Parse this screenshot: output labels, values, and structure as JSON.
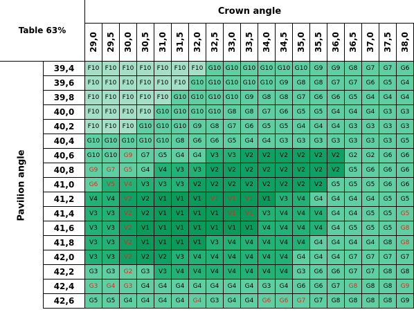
{
  "table_title": "Table 63%",
  "column_axis_label": "Crown angle",
  "row_axis_label": "Pavilion angle",
  "crown_angles": [
    "29,0",
    "29,5",
    "30,0",
    "30,5",
    "31,0",
    "31,5",
    "32,0",
    "32,5",
    "33,0",
    "33,5",
    "34,0",
    "34,5",
    "35,0",
    "35,5",
    "36,0",
    "36,5",
    "37,0",
    "37,5",
    "38,0"
  ],
  "pavilion_angles": [
    "39,4",
    "39,6",
    "39,8",
    "40,0",
    "40,2",
    "40,4",
    "40,6",
    "40,8",
    "41,0",
    "41,2",
    "41,4",
    "41,6",
    "41,8",
    "42,0",
    "42,2",
    "42,4",
    "42,6"
  ],
  "grades": [
    [
      "F10",
      "F10",
      "F10",
      "F10",
      "F10",
      "F10",
      "F10",
      "G10",
      "G10",
      "G10",
      "G10",
      "G10",
      "G10",
      "G9",
      "G9",
      "G8",
      "G7",
      "G7",
      "G6"
    ],
    [
      "F10",
      "F10",
      "F10",
      "F10",
      "F10",
      "F10",
      "G10",
      "G10",
      "G10",
      "G10",
      "G10",
      "G9",
      "G8",
      "G8",
      "G7",
      "G7",
      "G6",
      "G5",
      "G4"
    ],
    [
      "F10",
      "F10",
      "F10",
      "F10",
      "F10",
      "G10",
      "G10",
      "G10",
      "G10",
      "G9",
      "G8",
      "G8",
      "G7",
      "G6",
      "G6",
      "G5",
      "G4",
      "G4",
      "G4"
    ],
    [
      "F10",
      "F10",
      "F10",
      "F10",
      "G10",
      "G10",
      "G10",
      "G10",
      "G8",
      "G8",
      "G7",
      "G6",
      "G5",
      "G5",
      "G4",
      "G4",
      "G4",
      "G3",
      "G3"
    ],
    [
      "F10",
      "F10",
      "F10",
      "G10",
      "G10",
      "G10",
      "G9",
      "G8",
      "G7",
      "G6",
      "G5",
      "G5",
      "G4",
      "G4",
      "G4",
      "G3",
      "G3",
      "G3",
      "G3"
    ],
    [
      "G10",
      "G10",
      "G10",
      "G10",
      "G10",
      "G8",
      "G6",
      "G6",
      "G5",
      "G4",
      "G4",
      "G3",
      "G3",
      "G3",
      "G3",
      "G3",
      "G3",
      "G3",
      "G5"
    ],
    [
      "G10",
      "G10",
      "G9",
      "G7",
      "G5",
      "G4",
      "G4",
      "V3",
      "V3",
      "V2",
      "V2",
      "V2",
      "V2",
      "V2",
      "V2",
      "G2",
      "G2",
      "G6",
      "G6"
    ],
    [
      "G9",
      "G7",
      "G5",
      "G4",
      "V4",
      "V3",
      "V3",
      "V2",
      "V2",
      "V2",
      "V2",
      "V2",
      "V2",
      "V2",
      "V2",
      "G5",
      "G6",
      "G6",
      "G6"
    ],
    [
      "G6",
      "V5",
      "V4",
      "V3",
      "V3",
      "V3",
      "V2",
      "V2",
      "V2",
      "V2",
      "V2",
      "V2",
      "V2",
      "V2",
      "G5",
      "G5",
      "G5",
      "G6",
      "G6"
    ],
    [
      "V4",
      "V4",
      "V2",
      "V2",
      "V1",
      "V1",
      "V1",
      "V1",
      "V1",
      "V1",
      "V1",
      "V3",
      "V4",
      "G4",
      "G4",
      "G4",
      "G4",
      "G5",
      "G5"
    ],
    [
      "V3",
      "V3",
      "V2",
      "V2",
      "V1",
      "V1",
      "V1",
      "V1",
      "V1",
      "V1",
      "V3",
      "V4",
      "V4",
      "V4",
      "G4",
      "G4",
      "G5",
      "G5",
      "G5"
    ],
    [
      "V3",
      "V3",
      "V2",
      "V1",
      "V1",
      "V1",
      "V1",
      "V1",
      "V1",
      "V1",
      "V4",
      "V4",
      "V4",
      "V4",
      "G4",
      "G5",
      "G5",
      "G5",
      "G8"
    ],
    [
      "V3",
      "V3",
      "V2",
      "V1",
      "V1",
      "V1",
      "V1",
      "V3",
      "V4",
      "V4",
      "V4",
      "V4",
      "V4",
      "G4",
      "G4",
      "G4",
      "G4",
      "G8",
      "G8"
    ],
    [
      "V3",
      "V3",
      "V2",
      "V2",
      "V2",
      "V3",
      "V4",
      "V4",
      "V4",
      "V4",
      "V4",
      "V4",
      "G4",
      "G4",
      "G4",
      "G7",
      "G7",
      "G7",
      "G7"
    ],
    [
      "G3",
      "G3",
      "G2",
      "G3",
      "V3",
      "V4",
      "V4",
      "V4",
      "V4",
      "V4",
      "V4",
      "V4",
      "G3",
      "G6",
      "G6",
      "G7",
      "G7",
      "G8",
      "G8"
    ],
    [
      "G3",
      "G4",
      "G3",
      "G4",
      "G4",
      "G4",
      "G4",
      "G4",
      "G4",
      "G4",
      "G3",
      "G4",
      "G6",
      "G6",
      "G7",
      "G8",
      "G8",
      "G8",
      "G9"
    ],
    [
      "G5",
      "G5",
      "G4",
      "G4",
      "G4",
      "G4",
      "G4",
      "G3",
      "G4",
      "G4",
      "G6",
      "G6",
      "G7",
      "G7",
      "G8",
      "G8",
      "G8",
      "G8",
      "G9"
    ]
  ],
  "red_text_cells": [
    [
      6,
      2
    ],
    [
      7,
      0
    ],
    [
      7,
      1
    ],
    [
      7,
      2
    ],
    [
      8,
      0
    ],
    [
      8,
      1
    ],
    [
      8,
      2
    ],
    [
      9,
      2
    ],
    [
      9,
      7
    ],
    [
      9,
      8
    ],
    [
      9,
      9
    ],
    [
      10,
      2
    ],
    [
      10,
      8
    ],
    [
      10,
      9
    ],
    [
      10,
      18
    ],
    [
      11,
      2
    ],
    [
      11,
      18
    ],
    [
      12,
      2
    ],
    [
      12,
      18
    ],
    [
      13,
      2
    ],
    [
      14,
      2
    ],
    [
      15,
      0
    ],
    [
      15,
      1
    ],
    [
      15,
      2
    ],
    [
      15,
      15
    ],
    [
      15,
      18
    ],
    [
      16,
      6
    ],
    [
      16,
      10
    ],
    [
      16,
      11
    ],
    [
      16,
      12
    ]
  ],
  "grade_colors": {
    "F10": "#a4e0c8",
    "G10": "#5ecfa3",
    "G9": "#5ecfa3",
    "G8": "#5ecfa3",
    "G7": "#5ecfa3",
    "G6": "#5ecfa3",
    "G5": "#5ecfa3",
    "G4": "#5ecfa3",
    "G3": "#5ecfa3",
    "G2": "#5ecfa3",
    "V5": "#22b278",
    "V4": "#22b278",
    "V3": "#22b278",
    "V2": "#0fa066",
    "V1": "#0a9a5c"
  },
  "text_colors": {
    "normal": "#000000",
    "highlight": "#e0281c"
  }
}
